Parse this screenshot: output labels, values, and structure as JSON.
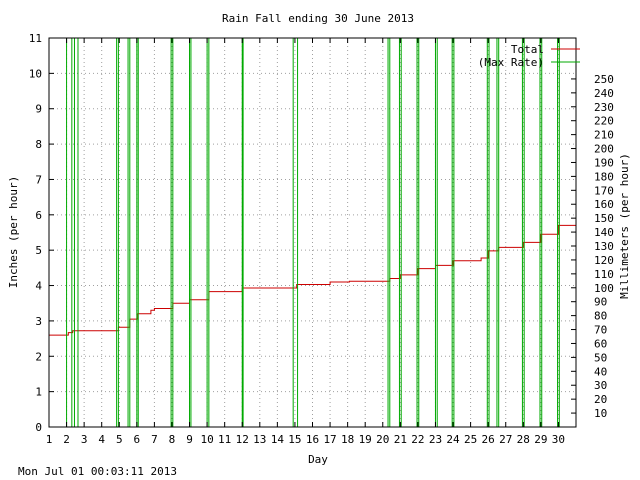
{
  "chart_data": {
    "type": "line",
    "title": "Rain Fall ending 30 June 2013",
    "xlabel": "Day",
    "ylabel": "Inches (per hour)",
    "y2label": "Millimeters (per hour)",
    "xlim": [
      1,
      31
    ],
    "ylim": [
      0,
      11
    ],
    "y2lim": [
      0,
      279.4
    ],
    "x_ticks": [
      1,
      2,
      3,
      4,
      5,
      6,
      7,
      8,
      9,
      10,
      11,
      12,
      13,
      14,
      15,
      16,
      17,
      18,
      19,
      20,
      21,
      22,
      23,
      24,
      25,
      26,
      27,
      28,
      29,
      30
    ],
    "y_ticks": [
      0,
      1,
      2,
      3,
      4,
      5,
      6,
      7,
      8,
      9,
      10,
      11
    ],
    "y2_ticks": [
      10,
      20,
      30,
      40,
      50,
      60,
      70,
      80,
      90,
      100,
      110,
      120,
      130,
      140,
      150,
      160,
      170,
      180,
      190,
      200,
      210,
      220,
      230,
      240,
      250
    ],
    "grid": true,
    "legend_position": "top-right",
    "colors": {
      "total": "#cc0000",
      "max_rate": "#00aa00"
    },
    "series": [
      {
        "name": "Total",
        "color": "#cc0000",
        "step": true,
        "points": [
          [
            1.0,
            2.6
          ],
          [
            2.1,
            2.6
          ],
          [
            2.1,
            2.67
          ],
          [
            2.35,
            2.67
          ],
          [
            2.35,
            2.72
          ],
          [
            4.95,
            2.72
          ],
          [
            4.95,
            2.82
          ],
          [
            5.6,
            2.82
          ],
          [
            5.6,
            3.05
          ],
          [
            6.05,
            3.05
          ],
          [
            6.05,
            3.2
          ],
          [
            6.8,
            3.2
          ],
          [
            6.8,
            3.3
          ],
          [
            7.0,
            3.3
          ],
          [
            7.0,
            3.35
          ],
          [
            8.05,
            3.35
          ],
          [
            8.05,
            3.5
          ],
          [
            9.0,
            3.5
          ],
          [
            9.0,
            3.6
          ],
          [
            10.1,
            3.6
          ],
          [
            10.1,
            3.83
          ],
          [
            12.0,
            3.83
          ],
          [
            12.0,
            3.93
          ],
          [
            15.1,
            3.93
          ],
          [
            15.1,
            4.03
          ],
          [
            17.0,
            4.03
          ],
          [
            17.0,
            4.1
          ],
          [
            18.1,
            4.1
          ],
          [
            18.1,
            4.12
          ],
          [
            20.4,
            4.12
          ],
          [
            20.4,
            4.2
          ],
          [
            21.0,
            4.2
          ],
          [
            21.0,
            4.3
          ],
          [
            22.0,
            4.3
          ],
          [
            22.0,
            4.48
          ],
          [
            23.0,
            4.48
          ],
          [
            23.0,
            4.57
          ],
          [
            24.0,
            4.57
          ],
          [
            24.0,
            4.7
          ],
          [
            25.6,
            4.7
          ],
          [
            25.6,
            4.78
          ],
          [
            26.0,
            4.78
          ],
          [
            26.0,
            4.98
          ],
          [
            26.6,
            4.98
          ],
          [
            26.6,
            5.08
          ],
          [
            28.0,
            5.08
          ],
          [
            28.0,
            5.22
          ],
          [
            29.0,
            5.22
          ],
          [
            29.0,
            5.45
          ],
          [
            30.0,
            5.45
          ],
          [
            30.0,
            5.7
          ],
          [
            31.0,
            5.7
          ]
        ]
      },
      {
        "name": "(Max Rate)",
        "color": "#00aa00",
        "spikes": [
          [
            2.0,
            2.3
          ],
          [
            2.45,
            2.65
          ],
          [
            4.85,
            4.95
          ],
          [
            5.5,
            5.6
          ],
          [
            6.0,
            6.08
          ],
          [
            7.95,
            8.05
          ],
          [
            9.0,
            9.08
          ],
          [
            10.0,
            10.1
          ],
          [
            12.0,
            12.05
          ],
          [
            14.9,
            15.15
          ],
          [
            20.3,
            20.4
          ],
          [
            20.95,
            21.05
          ],
          [
            21.95,
            22.05
          ],
          [
            23.0,
            23.1
          ],
          [
            23.95,
            24.05
          ],
          [
            25.95,
            26.05
          ],
          [
            26.5,
            26.6
          ],
          [
            27.95,
            28.05
          ],
          [
            28.95,
            29.05
          ],
          [
            29.95,
            30.05
          ]
        ]
      }
    ]
  },
  "footer": {
    "timestamp": "Mon Jul 01 00:03:11 2013"
  }
}
